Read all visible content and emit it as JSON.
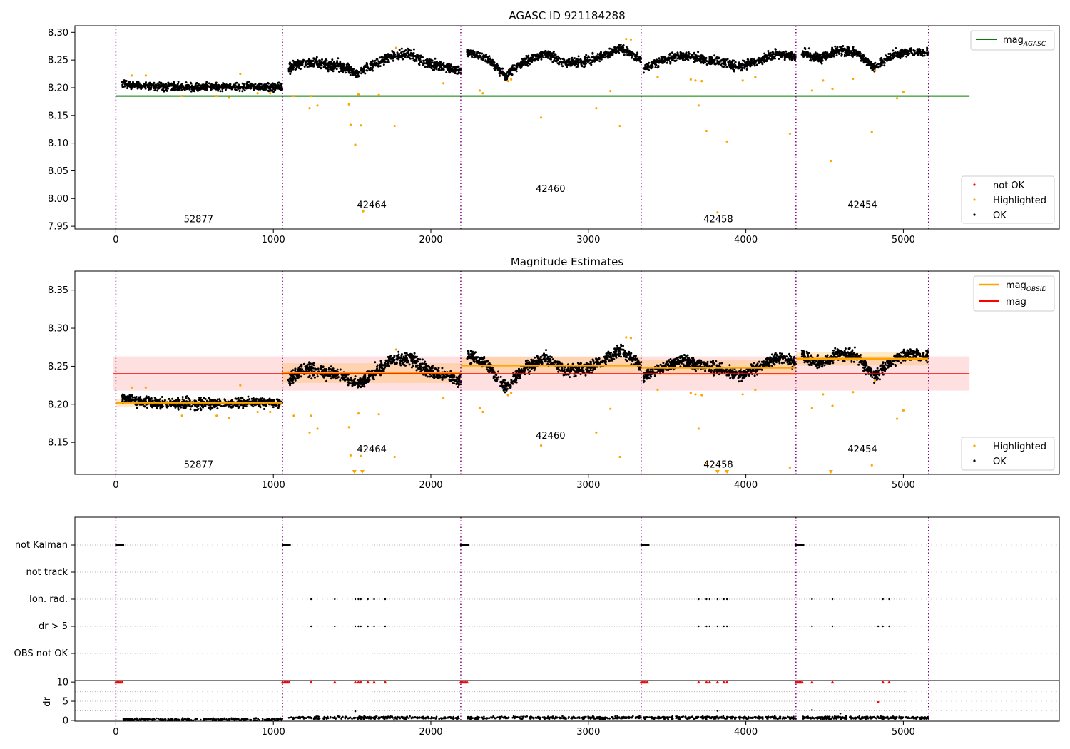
{
  "chart_data": [
    {
      "type": "scatter",
      "title": "AGASC ID 921184288",
      "xlim": [
        -260,
        5990
      ],
      "ylim": [
        7.945,
        8.312
      ],
      "xticks": [
        0,
        1000,
        2000,
        3000,
        4000,
        5000
      ],
      "xtick_labels": [
        "0",
        "1000",
        "2000",
        "3000",
        "4000",
        "5000"
      ],
      "yticks": [
        7.95,
        8.0,
        8.05,
        8.1,
        8.15,
        8.2,
        8.25,
        8.3
      ],
      "ytick_labels": [
        "7.95",
        "8.00",
        "8.05",
        "8.10",
        "8.15",
        "8.20",
        "8.25",
        "8.30"
      ],
      "obs_boundaries": [
        0,
        1058,
        2190,
        3335,
        4318,
        5160
      ],
      "obs_labels": [
        {
          "text": "52877",
          "x": 525,
          "y": 7.957
        },
        {
          "text": "42464",
          "x": 1625,
          "y": 7.983
        },
        {
          "text": "42460",
          "x": 2760,
          "y": 8.012
        },
        {
          "text": "42458",
          "x": 3825,
          "y": 7.957
        },
        {
          "text": "42454",
          "x": 4740,
          "y": 7.983
        }
      ],
      "mag_agasc": 8.185,
      "mag_agasc_xrange": [
        0,
        5420
      ],
      "ok_segments": [
        {
          "x0": 40,
          "x1": 1058,
          "mean": 8.203,
          "spread": 0.007,
          "trend": [
            8.208,
            8.203,
            8.201,
            8.202,
            8.2,
            8.202,
            8.201,
            8.203,
            8.202,
            8.201
          ],
          "n": 700
        },
        {
          "x0": 1095,
          "x1": 2190,
          "mean": 8.24,
          "spread": 0.009,
          "trend": [
            8.234,
            8.247,
            8.242,
            8.24,
            8.226,
            8.243,
            8.257,
            8.262,
            8.245,
            8.238,
            8.23
          ],
          "n": 800
        },
        {
          "x0": 2230,
          "x1": 3335,
          "mean": 8.25,
          "spread": 0.008,
          "trend": [
            8.265,
            8.253,
            8.222,
            8.248,
            8.262,
            8.246,
            8.246,
            8.257,
            8.272,
            8.25
          ],
          "n": 800
        },
        {
          "x0": 3350,
          "x1": 4318,
          "mean": 8.246,
          "spread": 0.008,
          "trend": [
            8.235,
            8.249,
            8.258,
            8.252,
            8.247,
            8.238,
            8.248,
            8.262,
            8.255
          ],
          "n": 700
        },
        {
          "x0": 4355,
          "x1": 5160,
          "mean": 8.258,
          "spread": 0.008,
          "trend": [
            8.264,
            8.253,
            8.267,
            8.264,
            8.237,
            8.258,
            8.265,
            8.263
          ],
          "n": 600
        }
      ],
      "highlighted_points": [
        [
          100,
          8.222
        ],
        [
          190,
          8.222
        ],
        [
          420,
          8.185
        ],
        [
          640,
          8.185
        ],
        [
          720,
          8.182
        ],
        [
          790,
          8.225
        ],
        [
          900,
          8.19
        ],
        [
          980,
          8.19
        ],
        [
          1130,
          8.185
        ],
        [
          1230,
          8.163
        ],
        [
          1280,
          8.168
        ],
        [
          1240,
          8.185
        ],
        [
          1480,
          8.17
        ],
        [
          1490,
          8.133
        ],
        [
          1520,
          8.097
        ],
        [
          1540,
          8.188
        ],
        [
          1555,
          8.132
        ],
        [
          1570,
          7.977
        ],
        [
          1670,
          8.187
        ],
        [
          1770,
          8.131
        ],
        [
          1780,
          8.272
        ],
        [
          2080,
          8.208
        ],
        [
          2310,
          8.195
        ],
        [
          2330,
          8.19
        ],
        [
          2490,
          8.212
        ],
        [
          2510,
          8.215
        ],
        [
          2700,
          8.146
        ],
        [
          3050,
          8.163
        ],
        [
          3140,
          8.194
        ],
        [
          3200,
          8.131
        ],
        [
          3240,
          8.288
        ],
        [
          3270,
          8.287
        ],
        [
          3440,
          8.219
        ],
        [
          3650,
          8.215
        ],
        [
          3680,
          8.213
        ],
        [
          3700,
          8.168
        ],
        [
          3720,
          8.212
        ],
        [
          3750,
          8.122
        ],
        [
          3820,
          7.975
        ],
        [
          3880,
          8.103
        ],
        [
          3980,
          8.213
        ],
        [
          4060,
          8.219
        ],
        [
          4280,
          8.117
        ],
        [
          4420,
          8.195
        ],
        [
          4490,
          8.213
        ],
        [
          4540,
          8.068
        ],
        [
          4550,
          8.198
        ],
        [
          4680,
          8.216
        ],
        [
          4800,
          8.12
        ],
        [
          4820,
          8.231
        ],
        [
          4960,
          8.181
        ],
        [
          5000,
          8.192
        ]
      ],
      "legend": [
        {
          "label": "mag",
          "subscript": "AGASC",
          "color": "#008000",
          "kind": "line"
        },
        {
          "label": "not OK",
          "color": "#ff0000",
          "kind": "marker"
        },
        {
          "label": "Highlighted",
          "color": "#ffa500",
          "kind": "marker"
        },
        {
          "label": "OK",
          "color": "#000000",
          "kind": "marker"
        }
      ]
    },
    {
      "type": "scatter",
      "title": "Magnitude Estimates",
      "xlim": [
        -260,
        5990
      ],
      "ylim": [
        8.108,
        8.375
      ],
      "xticks": [
        0,
        1000,
        2000,
        3000,
        4000,
        5000
      ],
      "xtick_labels": [
        "0",
        "1000",
        "2000",
        "3000",
        "4000",
        "5000"
      ],
      "yticks": [
        8.15,
        8.2,
        8.25,
        8.3,
        8.35
      ],
      "ytick_labels": [
        "8.15",
        "8.20",
        "8.25",
        "8.30",
        "8.35"
      ],
      "mag": 8.24,
      "mag_band": [
        8.218,
        8.263
      ],
      "mag_xrange": [
        -15,
        5420
      ],
      "mag_obsid": [
        {
          "x0": 0,
          "x1": 1058,
          "value": 8.202,
          "band": [
            8.197,
            8.207
          ]
        },
        {
          "x0": 1058,
          "x1": 2190,
          "value": 8.241,
          "band": [
            8.228,
            8.254
          ]
        },
        {
          "x0": 2190,
          "x1": 3335,
          "value": 8.251,
          "band": [
            8.24,
            8.262
          ]
        },
        {
          "x0": 3335,
          "x1": 4318,
          "value": 8.248,
          "band": [
            8.238,
            8.258
          ]
        },
        {
          "x0": 4318,
          "x1": 5160,
          "value": 8.26,
          "band": [
            8.251,
            8.269
          ]
        }
      ],
      "obs_labels": [
        {
          "text": "52877",
          "x": 525,
          "y": 8.117
        },
        {
          "text": "42464",
          "x": 1625,
          "y": 8.137
        },
        {
          "text": "42460",
          "x": 2760,
          "y": 8.155
        },
        {
          "text": "42458",
          "x": 3825,
          "y": 8.117
        },
        {
          "text": "42454",
          "x": 4740,
          "y": 8.137
        }
      ],
      "offscale_markers_x": [
        1515,
        1565,
        3820,
        3880,
        4540
      ],
      "legend_top": [
        {
          "label": "mag",
          "subscript": "OBSID",
          "color": "#ffa500",
          "kind": "line"
        },
        {
          "label": "mag",
          "color": "#ff0000",
          "kind": "line"
        }
      ],
      "legend_bottom": [
        {
          "label": "Highlighted",
          "color": "#ffa500",
          "kind": "marker"
        },
        {
          "label": "OK",
          "color": "#000000",
          "kind": "marker"
        }
      ]
    },
    {
      "type": "scatter",
      "title": "",
      "categories": [
        "not Kalman",
        "not track",
        "Ion. rad.",
        "dr > 5",
        "OBS not OK"
      ],
      "not_kalman_x0": [
        0,
        1058,
        2190,
        3335,
        4318
      ],
      "not_kalman_width": 50,
      "ion_rad_x": [
        1240,
        1390,
        1520,
        1540,
        1555,
        1600,
        1640,
        1710,
        3700,
        3750,
        3770,
        3820,
        3860,
        3880,
        4420,
        4550,
        4870,
        4910
      ],
      "dr_gt5_x": [
        1240,
        1390,
        1520,
        1540,
        1555,
        1600,
        1640,
        1710,
        3700,
        3750,
        3770,
        3820,
        3860,
        3880,
        4420,
        4550,
        4840,
        4870,
        4910
      ]
    },
    {
      "type": "scatter",
      "title": "",
      "ylabel": "dr",
      "xlim": [
        -260,
        5990
      ],
      "ylim": [
        -0.2,
        10.4
      ],
      "yticks": [
        0,
        5,
        10
      ],
      "ytick_labels": [
        "0",
        "5",
        "10"
      ],
      "xticks": [
        0,
        1000,
        2000,
        3000,
        4000,
        5000
      ],
      "xtick_labels": [
        "0",
        "1000",
        "2000",
        "3000",
        "4000",
        "5000"
      ],
      "capped_value": 10,
      "capped_x": [
        0,
        10,
        20,
        30,
        40,
        1058,
        1070,
        1080,
        1090,
        1100,
        1240,
        1390,
        1520,
        1540,
        1555,
        1600,
        1640,
        1710,
        2190,
        2200,
        2210,
        2220,
        2230,
        3335,
        3345,
        3355,
        3365,
        3375,
        3700,
        3750,
        3770,
        3820,
        3860,
        3880,
        4318,
        4328,
        4338,
        4348,
        4358,
        4420,
        4550,
        4870,
        4910
      ],
      "noticeable_points": [
        [
          1520,
          2.4
        ],
        [
          3820,
          2.5
        ],
        [
          4420,
          2.7
        ],
        [
          4840,
          4.8
        ],
        [
          4600,
          1.8
        ]
      ]
    }
  ]
}
